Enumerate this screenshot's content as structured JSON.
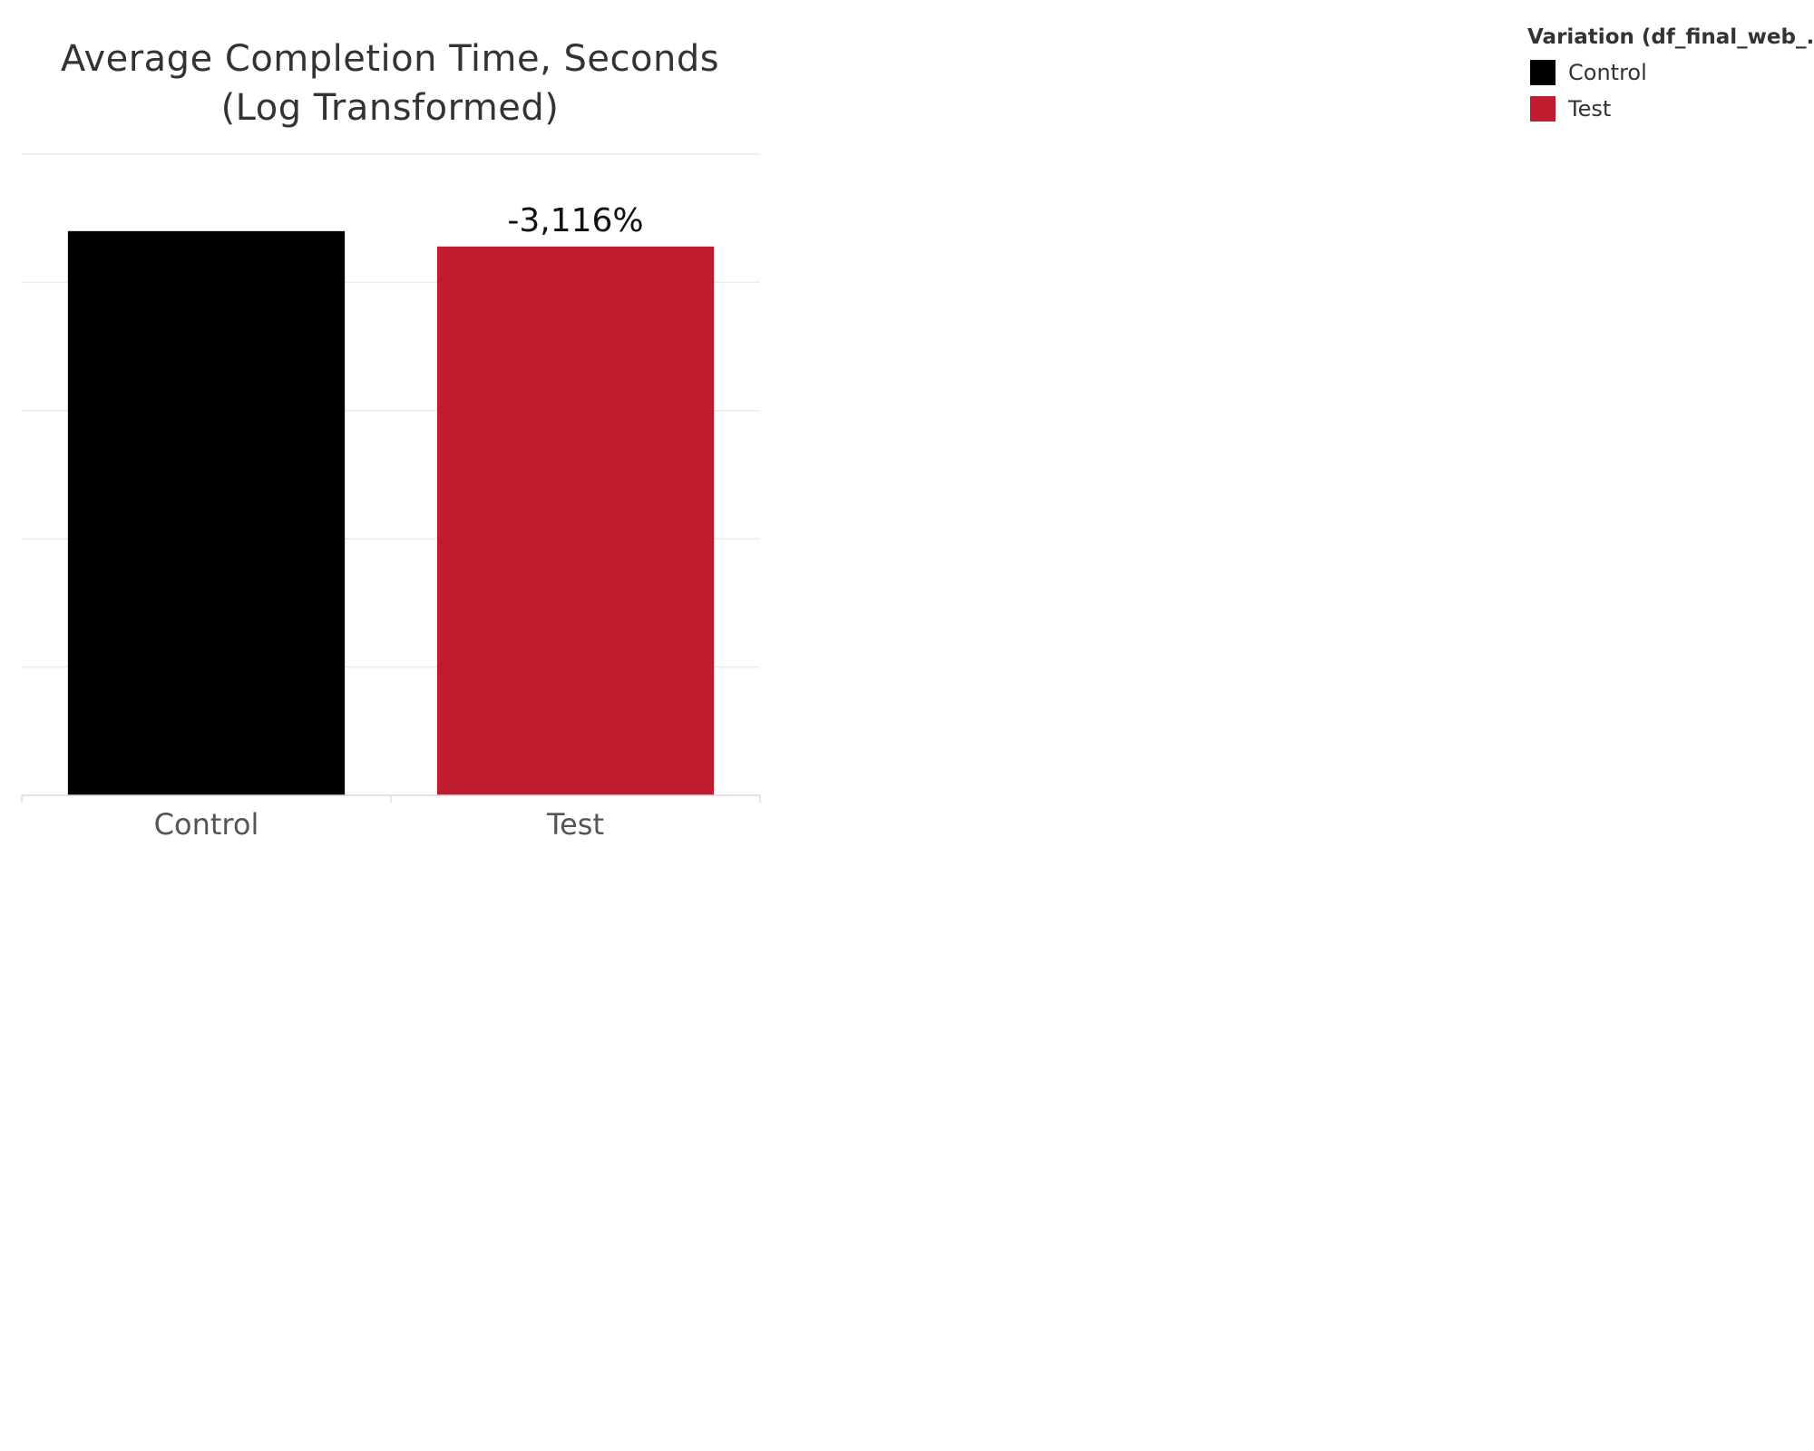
{
  "chart_data": {
    "type": "bar",
    "title_lines": [
      "Average Completion Time, Seconds",
      "(Log Transformed)"
    ],
    "categories": [
      "Control",
      "Test"
    ],
    "values": [
      2.2,
      2.14
    ],
    "colors": [
      "#000000",
      "#c01c30"
    ],
    "data_labels": [
      "",
      "-3,116%"
    ],
    "xlabel": "",
    "ylabel": "",
    "ylim": [
      0,
      2.5
    ],
    "yticks": [
      0,
      0.5,
      1.0,
      1.5,
      2.0,
      2.5
    ],
    "ytick_labels_shown": false,
    "grid": true,
    "legend": {
      "title": "Variation (df_final_web_..",
      "placement": "top-right",
      "items": [
        {
          "label": "Control",
          "color": "#000000"
        },
        {
          "label": "Test",
          "color": "#c01c30"
        }
      ]
    }
  }
}
